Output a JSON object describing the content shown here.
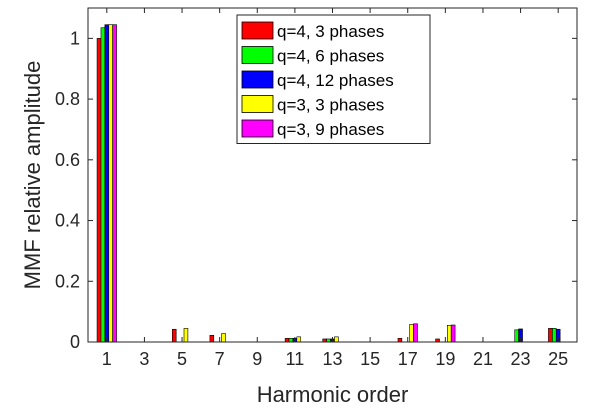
{
  "chart_data": {
    "type": "bar",
    "xlabel": "Harmonic order",
    "ylabel": "MMF relative amplitude",
    "ylim": [
      0,
      1.1
    ],
    "yticks": [
      0,
      0.2,
      0.4,
      0.6,
      0.8,
      1
    ],
    "ytick_labels": [
      "0",
      "0.2",
      "0.4",
      "0.6",
      "0.8",
      "1"
    ],
    "categories": [
      "1",
      "3",
      "5",
      "7",
      "9",
      "11",
      "13",
      "15",
      "17",
      "19",
      "21",
      "23",
      "25"
    ],
    "grid": false,
    "legend_position": "top-center",
    "series": [
      {
        "name": "q=4, 3 phases",
        "color": "#ff0000",
        "values": [
          1.0,
          0,
          0.042,
          0.022,
          0,
          0.012,
          0.01,
          0,
          0.012,
          0.01,
          0,
          0,
          0.045
        ]
      },
      {
        "name": "q=4, 6 phases",
        "color": "#00ff00",
        "values": [
          1.035,
          0,
          0,
          0,
          0,
          0.012,
          0.01,
          0,
          0,
          0,
          0,
          0.04,
          0.045
        ]
      },
      {
        "name": "q=4, 12 phases",
        "color": "#0000ff",
        "values": [
          1.045,
          0,
          0,
          0,
          0,
          0.012,
          0.01,
          0,
          0,
          0,
          0,
          0.043,
          0.042
        ]
      },
      {
        "name": "q=3, 3 phases",
        "color": "#ffff00",
        "values": [
          1.045,
          0,
          0.045,
          0.028,
          0,
          0.017,
          0.017,
          0,
          0.058,
          0.055,
          0,
          0,
          0
        ]
      },
      {
        "name": "q=3, 9 phases",
        "color": "#ff00ff",
        "values": [
          1.045,
          0,
          0,
          0,
          0,
          0,
          0,
          0,
          0.06,
          0.056,
          0,
          0,
          0
        ]
      }
    ]
  }
}
